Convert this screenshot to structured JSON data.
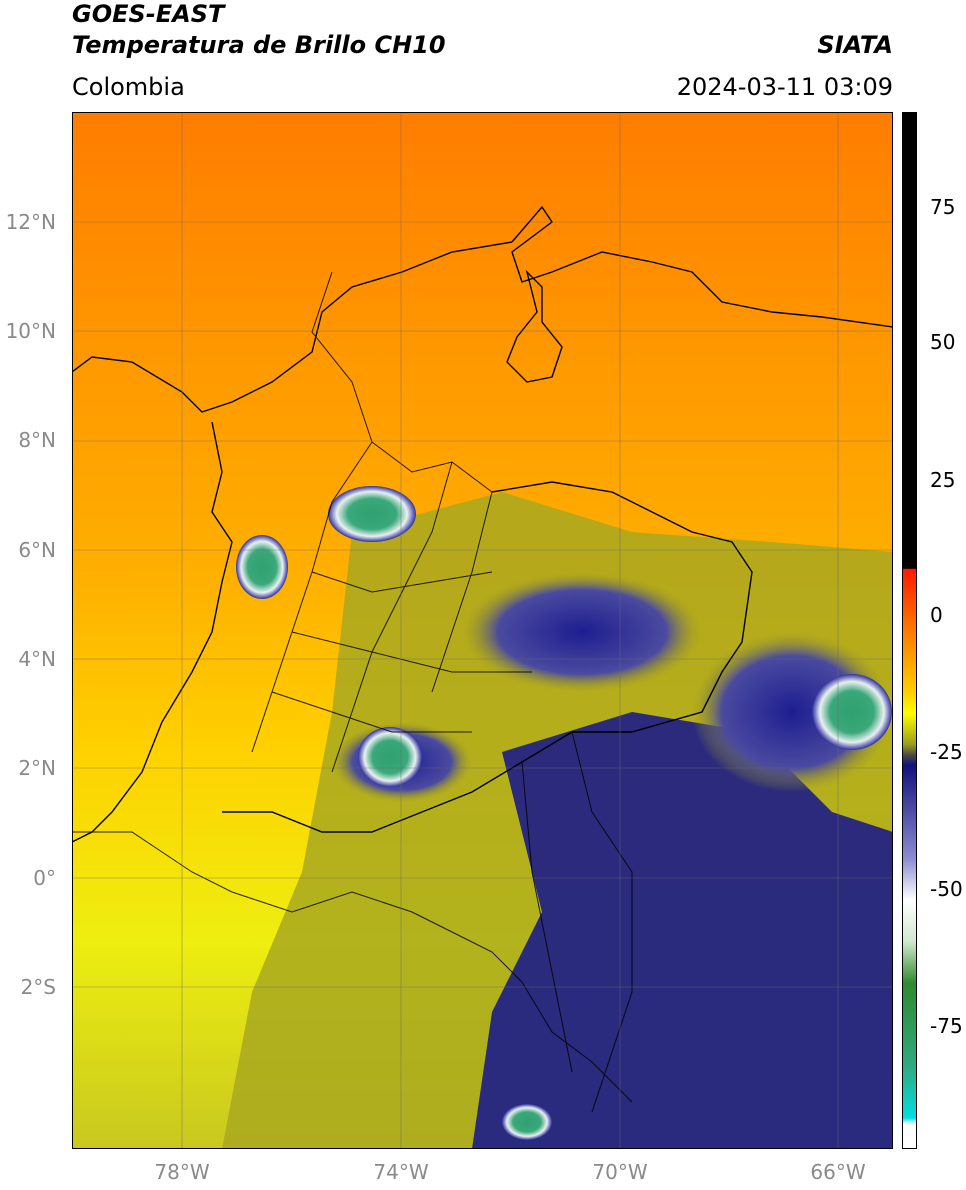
{
  "header": {
    "title_line1": "GOES-EAST",
    "title_line2": "Temperatura de Brillo CH10",
    "region": "Colombia",
    "agency": "SIATA",
    "datetime": "2024-03-11 03:09"
  },
  "map": {
    "lat_labels": [
      "12°N",
      "10°N",
      "8°N",
      "6°N",
      "4°N",
      "2°N",
      "0°",
      "2°S"
    ],
    "lon_labels": [
      "78°W",
      "74°W",
      "70°W",
      "66°W"
    ],
    "extent": {
      "lon_min": -80,
      "lon_max": -65,
      "lat_min": -5,
      "lat_max": 14
    },
    "gridlines": true
  },
  "colorbar": {
    "tick_labels": [
      "75",
      "50",
      "25",
      "0",
      "-25",
      "-50",
      "-75"
    ],
    "tick_values": [
      75,
      50,
      25,
      0,
      -25,
      -50,
      -75
    ],
    "range": [
      -95,
      90
    ],
    "colors": {
      "black": "#000000",
      "red": "#ff1a00",
      "orange": "#ff9400",
      "yellow": "#ffff00",
      "olive": "#9b9b1e",
      "navy": "#12127f",
      "white": "#ffffff",
      "green": "#2e8b2e",
      "cyan": "#00e0e0"
    }
  }
}
